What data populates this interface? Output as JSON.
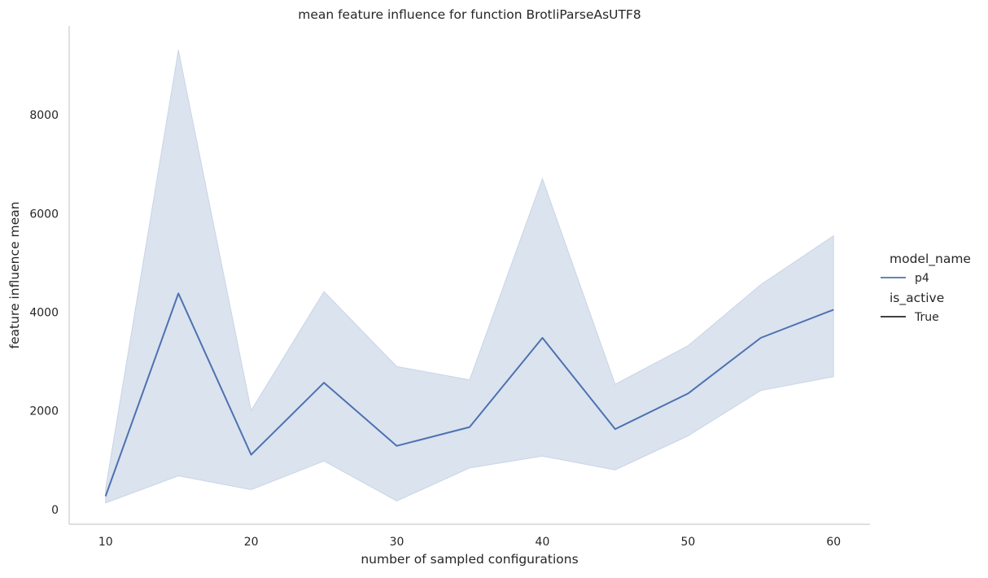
{
  "chart_data": {
    "type": "line",
    "title": "mean feature influence for function BrotliParseAsUTF8",
    "xlabel": "number of sampled configurations",
    "ylabel": "feature influence mean",
    "xlim": [
      7.5,
      62.5
    ],
    "ylim": [
      -300,
      9800
    ],
    "xticks": [
      10,
      20,
      30,
      40,
      50,
      60
    ],
    "yticks": [
      0,
      2000,
      4000,
      6000,
      8000
    ],
    "grid": false,
    "legend_position": "right",
    "legend": {
      "hue_title": "model_name",
      "hue_entries": [
        "p4"
      ],
      "style_title": "is_active",
      "style_entries": [
        "True"
      ]
    },
    "x": [
      10,
      15,
      20,
      25,
      30,
      35,
      40,
      45,
      50,
      55,
      60
    ],
    "series": [
      {
        "name": "p4",
        "color": "#4c72b0",
        "values": [
          270,
          4380,
          1110,
          2570,
          1290,
          1670,
          3480,
          1630,
          2350,
          3480,
          4050
        ],
        "ci_lower": [
          130,
          680,
          400,
          980,
          170,
          840,
          1080,
          800,
          1490,
          2410,
          2690
        ],
        "ci_upper": [
          430,
          9320,
          2010,
          4420,
          2900,
          2630,
          6710,
          2540,
          3320,
          4560,
          5550
        ]
      }
    ],
    "style_line_color": "#262626"
  }
}
